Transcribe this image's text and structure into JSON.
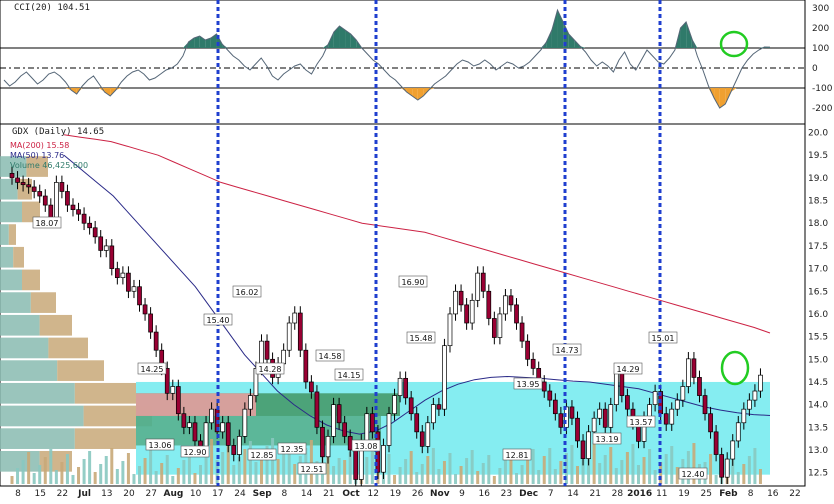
{
  "chart_data": {
    "type": "candlestick",
    "symbol_header": "GDX (Daily) 14.65",
    "legend": {
      "ma200": "MA(200) 15.58",
      "ma50": "MA(50) 13.76",
      "volume": "Volume 46,425,600"
    },
    "colors": {
      "ma200": "#cc2244",
      "ma50": "#2a2a88",
      "cci_pos": "#2f7a6a",
      "cci_neg": "#f0a030",
      "band": "#66e8ee",
      "green_box": "#3a8a50",
      "red_box": "#e6a0a0",
      "vline": "#1f3fcf",
      "highlight": "#22cc22",
      "bull": "#ffffff",
      "bear": "#990033"
    },
    "cci": {
      "label": "CCI(20) 104.51",
      "ticks": [
        300,
        200,
        100,
        0,
        -100,
        -200
      ],
      "ylim": [
        -260,
        320
      ],
      "levels": [
        100,
        0,
        -100
      ],
      "values": [
        -60,
        -90,
        -70,
        -40,
        -20,
        -50,
        -80,
        -60,
        -30,
        -20,
        -40,
        -70,
        -110,
        -130,
        -90,
        -60,
        -40,
        -80,
        -120,
        -140,
        -110,
        -70,
        -40,
        -20,
        -10,
        -30,
        -60,
        -50,
        -30,
        -10,
        0,
        20,
        60,
        130,
        150,
        160,
        140,
        150,
        170,
        120,
        90,
        60,
        40,
        10,
        -10,
        20,
        50,
        10,
        -40,
        -60,
        -30,
        -10,
        10,
        20,
        -10,
        -30,
        20,
        60,
        120,
        180,
        210,
        190,
        170,
        140,
        100,
        70,
        40,
        20,
        -10,
        -40,
        -60,
        -90,
        -120,
        -140,
        -160,
        -140,
        -110,
        -80,
        -60,
        -40,
        -10,
        20,
        40,
        30,
        10,
        20,
        40,
        20,
        -10,
        10,
        30,
        20,
        0,
        10,
        30,
        60,
        90,
        130,
        190,
        290,
        230,
        170,
        140,
        110,
        80,
        40,
        10,
        30,
        10,
        -20,
        40,
        80,
        20,
        -10,
        40,
        90,
        60,
        30,
        20,
        50,
        90,
        200,
        230,
        150,
        60,
        -10,
        -90,
        -150,
        -200,
        -180,
        -120,
        -60,
        0,
        40,
        70,
        90,
        105,
        104.51
      ]
    },
    "price": {
      "ticks": [
        "20.0",
        "19.5",
        "19.0",
        "18.5",
        "18.0",
        "17.5",
        "17.0",
        "16.5",
        "16.0",
        "15.5",
        "15.0",
        "14.5",
        "14.0",
        "13.5",
        "13.0",
        "12.5"
      ],
      "ylim": [
        12.25,
        20.1
      ],
      "x_labels": [
        "8",
        "15",
        "22",
        "Jul",
        "13",
        "20",
        "27",
        "Aug",
        "10",
        "17",
        "24",
        "Sep",
        "8",
        "14",
        "21",
        "Oct",
        "12",
        "19",
        "26",
        "Nov",
        "9",
        "16",
        "23",
        "Dec",
        "7",
        "14",
        "21",
        "28",
        "2016",
        "11",
        "19",
        "25",
        "Feb",
        "8",
        "16",
        "22"
      ],
      "annotations": [
        "18.07",
        "14.25",
        "13.06",
        "12.90",
        "15.40",
        "16.02",
        "14.28",
        "12.85",
        "12.35",
        "12.51",
        "14.58",
        "14.15",
        "13.08",
        "16.90",
        "15.48",
        "13.95",
        "12.81",
        "14.73",
        "13.19",
        "14.29",
        "13.57",
        "15.01",
        "12.40"
      ],
      "band_range": [
        12.5,
        14.5
      ],
      "ma200": [
        19.95,
        19.9,
        19.85,
        19.8,
        19.7,
        19.6,
        19.5,
        19.35,
        19.2,
        19.05,
        18.9,
        18.8,
        18.7,
        18.6,
        18.5,
        18.4,
        18.3,
        18.2,
        18.1,
        18.0,
        17.95,
        17.9,
        17.85,
        17.8,
        17.7,
        17.6,
        17.5,
        17.4,
        17.3,
        17.2,
        17.1,
        17.0,
        16.9,
        16.8,
        16.7,
        16.6,
        16.5,
        16.4,
        16.3,
        16.2,
        16.1,
        16.0,
        15.9,
        15.8,
        15.7,
        15.58
      ],
      "ma50": [
        19.5,
        19.2,
        18.9,
        18.6,
        18.2,
        17.8,
        17.4,
        17.0,
        16.6,
        16.1,
        15.6,
        15.1,
        14.7,
        14.3,
        14.0,
        13.75,
        13.55,
        13.42,
        13.35,
        13.42,
        13.6,
        13.85,
        14.1,
        14.3,
        14.45,
        14.55,
        14.6,
        14.62,
        14.6,
        14.58,
        14.55,
        14.52,
        14.5,
        14.45,
        14.4,
        14.35,
        14.25,
        14.15,
        14.05,
        13.95,
        13.88,
        13.82,
        13.78,
        13.76
      ],
      "closes": [
        19.0,
        18.9,
        18.85,
        18.8,
        18.7,
        18.6,
        18.4,
        18.07,
        18.9,
        18.7,
        18.4,
        18.3,
        18.2,
        18.0,
        17.9,
        17.7,
        17.4,
        17.5,
        17.0,
        16.8,
        16.9,
        16.5,
        16.6,
        16.2,
        16.0,
        15.6,
        15.2,
        14.8,
        14.25,
        14.4,
        13.8,
        13.5,
        13.6,
        13.2,
        13.06,
        13.6,
        13.9,
        13.4,
        13.6,
        13.1,
        12.9,
        13.3,
        13.9,
        14.2,
        14.8,
        15.4,
        15.0,
        14.6,
        14.9,
        15.2,
        15.8,
        16.02,
        15.2,
        14.5,
        14.28,
        13.5,
        12.85,
        13.3,
        14.0,
        13.6,
        13.3,
        13.0,
        12.35,
        13.2,
        13.8,
        13.4,
        12.51,
        13.1,
        13.8,
        14.2,
        14.58,
        14.15,
        13.8,
        13.4,
        13.08,
        13.6,
        14.0,
        13.9,
        15.3,
        16.0,
        16.5,
        16.2,
        15.8,
        16.3,
        16.9,
        16.5,
        15.9,
        15.48,
        16.0,
        16.4,
        16.2,
        15.8,
        15.4,
        15.0,
        14.8,
        14.5,
        14.3,
        14.1,
        13.8,
        13.5,
        13.95,
        13.7,
        13.2,
        12.81,
        13.4,
        13.7,
        13.9,
        13.5,
        14.0,
        14.73,
        14.2,
        13.9,
        13.6,
        13.19,
        13.7,
        14.0,
        14.29,
        13.8,
        13.57,
        13.9,
        14.1,
        14.4,
        15.01,
        14.6,
        14.2,
        13.8,
        13.4,
        12.9,
        12.4,
        12.8,
        13.2,
        13.6,
        13.9,
        14.1,
        14.3,
        14.65
      ]
    },
    "volume_ticks": [],
    "time_ticks_note": ""
  }
}
